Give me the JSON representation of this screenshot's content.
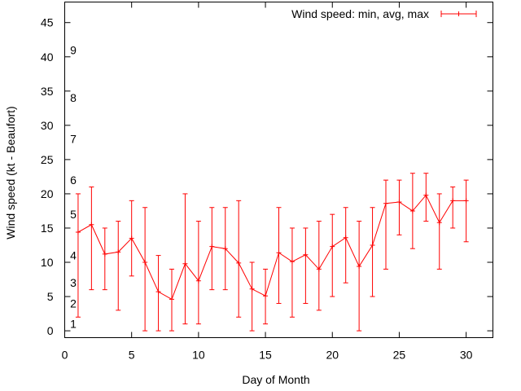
{
  "chart_data": {
    "type": "line",
    "xlabel": "Day of Month",
    "ylabel": "Wind speed (kt - Beaufort)",
    "xlim": [
      0,
      32
    ],
    "ylim": [
      -1,
      48
    ],
    "xticks": [
      0,
      5,
      10,
      15,
      20,
      25,
      30
    ],
    "yticks": [
      0,
      5,
      10,
      15,
      20,
      25,
      30,
      35,
      40,
      45
    ],
    "grid": false,
    "legend": "top-right",
    "color": "#ff0000",
    "beaufort_labels": [
      {
        "label": "1",
        "value": 1
      },
      {
        "label": "2",
        "value": 4
      },
      {
        "label": "3",
        "value": 7
      },
      {
        "label": "4",
        "value": 11
      },
      {
        "label": "5",
        "value": 17
      },
      {
        "label": "6",
        "value": 22
      },
      {
        "label": "7",
        "value": 28
      },
      {
        "label": "8",
        "value": 34
      },
      {
        "label": "9",
        "value": 41
      }
    ],
    "series": [
      {
        "name": "Wind speed: min, avg, max",
        "x": [
          1,
          2,
          3,
          4,
          5,
          6,
          7,
          8,
          9,
          10,
          11,
          12,
          13,
          14,
          15,
          16,
          17,
          18,
          19,
          20,
          21,
          22,
          23,
          24,
          25,
          26,
          27,
          28,
          29,
          30
        ],
        "avg": [
          14.4,
          15.5,
          11.2,
          11.5,
          13.5,
          10,
          5.7,
          4.6,
          9.8,
          7.3,
          12.3,
          12,
          9.9,
          6.1,
          5.1,
          11.4,
          10.1,
          11.1,
          9,
          12.3,
          13.6,
          9.4,
          12.5,
          18.6,
          18.8,
          17.5,
          19.8,
          15.8,
          19,
          19
        ],
        "min": [
          2,
          6,
          6,
          3,
          8,
          0,
          0,
          0,
          1,
          1,
          6,
          6,
          2,
          0,
          1,
          4,
          2,
          4,
          3,
          5,
          7,
          0,
          5,
          9,
          14,
          12,
          16,
          9,
          15,
          13
        ],
        "max": [
          20,
          21,
          15,
          16,
          19,
          18,
          11,
          9,
          20,
          16,
          18,
          18,
          19,
          10,
          9,
          18,
          15,
          15,
          16,
          17,
          18,
          16,
          18,
          22,
          22,
          23,
          23,
          20,
          21,
          22
        ]
      }
    ]
  }
}
